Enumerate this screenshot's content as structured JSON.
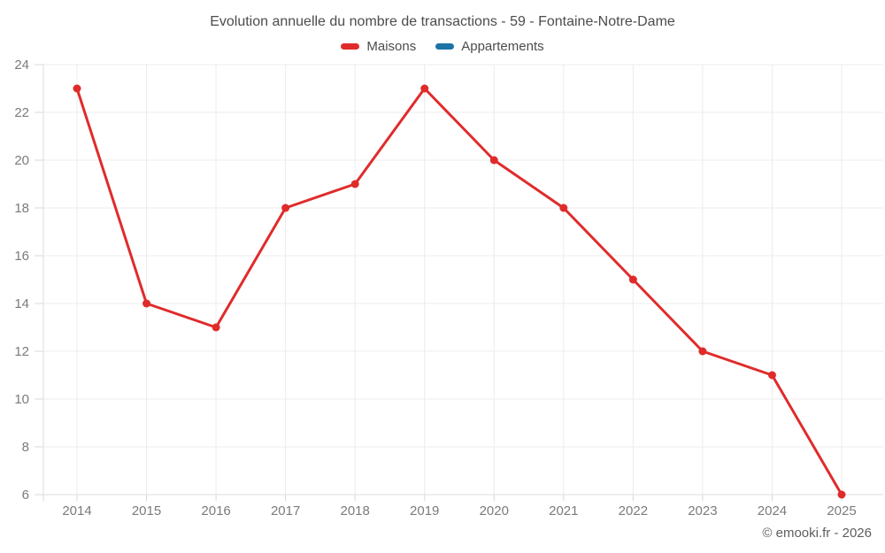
{
  "header": {
    "title": "Evolution annuelle du nombre de transactions - 59 - Fontaine-Notre-Dame"
  },
  "footer": {
    "credit": "© emooki.fr - 2026"
  },
  "chart_data": {
    "type": "line",
    "title": "Evolution annuelle du nombre de transactions - 59 - Fontaine-Notre-Dame",
    "categories": [
      "2014",
      "2015",
      "2016",
      "2017",
      "2018",
      "2019",
      "2020",
      "2021",
      "2022",
      "2023",
      "2024",
      "2025"
    ],
    "series": [
      {
        "name": "Maisons",
        "color": "#e02b2b",
        "values": [
          23,
          14,
          13,
          18,
          19,
          23,
          20,
          18,
          15,
          12,
          11,
          6
        ]
      },
      {
        "name": "Appartements",
        "color": "#1e73a6",
        "values": []
      }
    ],
    "xlabel": "",
    "ylabel": "",
    "ylim": [
      6,
      24
    ],
    "yticks": [
      6,
      8,
      10,
      12,
      14,
      16,
      18,
      20,
      22,
      24
    ],
    "grid": true,
    "legend_position": "top",
    "colors": {
      "grid": "#ececec",
      "axis_line": "#dcdcdc",
      "tick": "#d8d8d8",
      "axis_text": "#7b7b7b",
      "title_text": "#4c4c4c",
      "footer_text": "#5e5e5e"
    }
  }
}
